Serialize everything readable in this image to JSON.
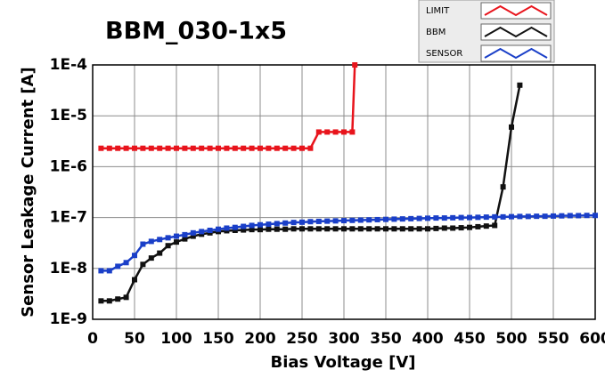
{
  "chart_data": {
    "type": "line",
    "title": "BBM_030-1x5",
    "x_label": "Bias Voltage [V]",
    "y_label": "Sensor Leakage Current [A]",
    "xlim": [
      0,
      600
    ],
    "xticks": [
      0,
      50,
      100,
      150,
      200,
      250,
      300,
      350,
      400,
      450,
      500,
      550,
      600
    ],
    "ylim": [
      1e-09,
      0.0001
    ],
    "log_y": true,
    "grid": true,
    "yticks": [
      {
        "value": 1e-09,
        "label": "1E-9"
      },
      {
        "value": 1e-08,
        "label": "1E-8"
      },
      {
        "value": 1e-07,
        "label": "1E-7"
      },
      {
        "value": 1e-06,
        "label": "1E-6"
      },
      {
        "value": 1e-05,
        "label": "1E-5"
      },
      {
        "value": 0.0001,
        "label": "1E-4"
      }
    ],
    "series": [
      {
        "name": "LIMIT",
        "color": "#e8141c",
        "x": [
          10,
          20,
          30,
          40,
          50,
          60,
          70,
          80,
          90,
          100,
          110,
          120,
          130,
          140,
          150,
          160,
          170,
          180,
          190,
          200,
          210,
          220,
          230,
          240,
          250,
          260,
          270,
          280,
          290,
          300,
          310,
          313
        ],
        "values": [
          2.3e-06,
          2.3e-06,
          2.3e-06,
          2.3e-06,
          2.3e-06,
          2.3e-06,
          2.3e-06,
          2.3e-06,
          2.3e-06,
          2.3e-06,
          2.3e-06,
          2.3e-06,
          2.3e-06,
          2.3e-06,
          2.3e-06,
          2.3e-06,
          2.3e-06,
          2.3e-06,
          2.3e-06,
          2.3e-06,
          2.3e-06,
          2.3e-06,
          2.3e-06,
          2.3e-06,
          2.3e-06,
          2.3e-06,
          4.8e-06,
          4.8e-06,
          4.8e-06,
          4.8e-06,
          4.8e-06,
          0.0001
        ]
      },
      {
        "name": "BBM",
        "color": "#111111",
        "x": [
          10,
          20,
          30,
          40,
          50,
          60,
          70,
          80,
          90,
          100,
          110,
          120,
          130,
          140,
          150,
          160,
          170,
          180,
          190,
          200,
          210,
          220,
          230,
          240,
          250,
          260,
          270,
          280,
          290,
          300,
          310,
          320,
          330,
          340,
          350,
          360,
          370,
          380,
          390,
          400,
          410,
          420,
          430,
          440,
          450,
          460,
          470,
          480,
          490,
          500,
          510
        ],
        "values": [
          2.3e-09,
          2.3e-09,
          2.5e-09,
          2.7e-09,
          6e-09,
          1.2e-08,
          1.6e-08,
          2e-08,
          2.8e-08,
          3.3e-08,
          3.8e-08,
          4.3e-08,
          4.7e-08,
          5e-08,
          5.3e-08,
          5.5e-08,
          5.6e-08,
          5.7e-08,
          5.8e-08,
          5.8e-08,
          5.9e-08,
          5.9e-08,
          5.9e-08,
          6e-08,
          6e-08,
          6e-08,
          6e-08,
          6e-08,
          6e-08,
          6e-08,
          6e-08,
          6e-08,
          6e-08,
          6e-08,
          6e-08,
          6e-08,
          6e-08,
          6e-08,
          6e-08,
          6e-08,
          6.1e-08,
          6.2e-08,
          6.2e-08,
          6.3e-08,
          6.4e-08,
          6.6e-08,
          6.8e-08,
          7e-08,
          4e-07,
          6e-06,
          4e-05
        ]
      },
      {
        "name": "SENSOR",
        "color": "#1a3fc8",
        "x": [
          10,
          20,
          30,
          40,
          50,
          60,
          70,
          80,
          90,
          100,
          110,
          120,
          130,
          140,
          150,
          160,
          170,
          180,
          190,
          200,
          210,
          220,
          230,
          240,
          250,
          260,
          270,
          280,
          290,
          300,
          310,
          320,
          330,
          340,
          350,
          360,
          370,
          380,
          390,
          400,
          410,
          420,
          430,
          440,
          450,
          460,
          470,
          480,
          490,
          500,
          510,
          520,
          530,
          540,
          550,
          560,
          570,
          580,
          590,
          600
        ],
        "values": [
          9e-09,
          9e-09,
          1.1e-08,
          1.3e-08,
          1.8e-08,
          3e-08,
          3.4e-08,
          3.7e-08,
          4e-08,
          4.3e-08,
          4.6e-08,
          5e-08,
          5.3e-08,
          5.6e-08,
          5.9e-08,
          6.2e-08,
          6.4e-08,
          6.7e-08,
          7e-08,
          7.2e-08,
          7.4e-08,
          7.6e-08,
          7.8e-08,
          8e-08,
          8.1e-08,
          8.3e-08,
          8.4e-08,
          8.5e-08,
          8.6e-08,
          8.7e-08,
          8.8e-08,
          8.9e-08,
          9e-08,
          9.1e-08,
          9.2e-08,
          9.3e-08,
          9.4e-08,
          9.5e-08,
          9.6e-08,
          9.7e-08,
          9.8e-08,
          9.8e-08,
          9.9e-08,
          1e-07,
          1e-07,
          1.01e-07,
          1.02e-07,
          1.03e-07,
          1.03e-07,
          1.04e-07,
          1.05e-07,
          1.05e-07,
          1.06e-07,
          1.06e-07,
          1.07e-07,
          1.08e-07,
          1.09e-07,
          1.09e-07,
          1.1e-07,
          1.1e-07
        ]
      }
    ]
  }
}
